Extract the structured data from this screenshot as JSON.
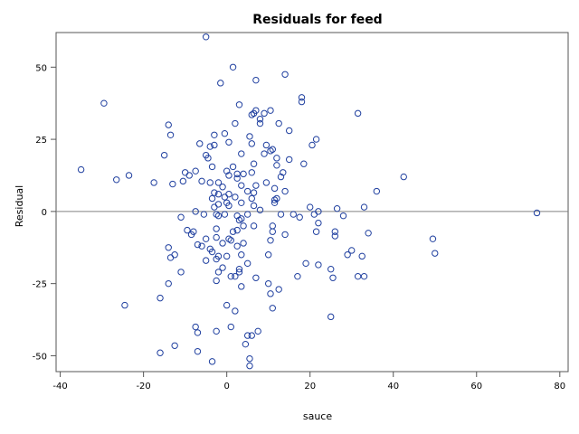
{
  "chart_data": {
    "type": "scatter",
    "title": "Residuals for feed",
    "xlabel": "sauce",
    "ylabel": "Residual",
    "xlim": [
      -41,
      82
    ],
    "ylim": [
      -55.5,
      62
    ],
    "xticks": [
      -40,
      -20,
      0,
      20,
      40,
      60,
      80
    ],
    "yticks": [
      -50,
      -25,
      0,
      25,
      50
    ],
    "reference_line_y": 0,
    "grid": false,
    "marker": "open-circle",
    "marker_color": "#1f3f9f",
    "points": [
      [
        -35,
        14.5
      ],
      [
        -29.5,
        37.5
      ],
      [
        -26.5,
        11
      ],
      [
        -23.5,
        12.5
      ],
      [
        -24.5,
        -32.5
      ],
      [
        -17.5,
        10
      ],
      [
        -16,
        -30
      ],
      [
        -16,
        -49
      ],
      [
        -15,
        19.5
      ],
      [
        -14,
        30
      ],
      [
        -14,
        -25
      ],
      [
        -13.5,
        26.5
      ],
      [
        -13,
        9.5
      ],
      [
        -12.5,
        -15
      ],
      [
        -12.5,
        -46.5
      ],
      [
        -14,
        -12.5
      ],
      [
        -13.5,
        -16
      ],
      [
        -11,
        -2
      ],
      [
        -11,
        -21
      ],
      [
        -10.5,
        10.5
      ],
      [
        -10,
        13.5
      ],
      [
        -9.5,
        -6.5
      ],
      [
        -9,
        12.5
      ],
      [
        -8.5,
        -8
      ],
      [
        -8,
        -7
      ],
      [
        -7.5,
        0
      ],
      [
        -7.5,
        14
      ],
      [
        -7.5,
        -40
      ],
      [
        -7,
        -11.5
      ],
      [
        -7,
        -42
      ],
      [
        -7,
        -48.5
      ],
      [
        -6,
        -12
      ],
      [
        -6.5,
        23.5
      ],
      [
        -6,
        10.5
      ],
      [
        -5.5,
        -1
      ],
      [
        -5,
        -9.5
      ],
      [
        -5,
        -17
      ],
      [
        -5,
        19.5
      ],
      [
        -4.5,
        18.5
      ],
      [
        -4,
        10
      ],
      [
        -4,
        22.5
      ],
      [
        -4,
        -13
      ],
      [
        -3.5,
        15.5
      ],
      [
        -3.5,
        -52
      ],
      [
        -3.5,
        -14
      ],
      [
        -3.5,
        4.5
      ],
      [
        -3,
        1.5
      ],
      [
        -3,
        6.5
      ],
      [
        -3,
        26.5
      ],
      [
        -3,
        23
      ],
      [
        -2.5,
        -1
      ],
      [
        -2.5,
        -6
      ],
      [
        -2.5,
        -9
      ],
      [
        -2.5,
        -16.5
      ],
      [
        -2.5,
        -24
      ],
      [
        -2.5,
        -41.5
      ],
      [
        -2,
        10
      ],
      [
        -2,
        6
      ],
      [
        -2,
        2.5
      ],
      [
        -2,
        -1.5
      ],
      [
        -2,
        -15.5
      ],
      [
        -2,
        -21
      ],
      [
        -1.5,
        44.5
      ],
      [
        -1,
        8.5
      ],
      [
        -1,
        -11
      ],
      [
        -1,
        -19.5
      ],
      [
        -0.5,
        27
      ],
      [
        -0.5,
        5
      ],
      [
        -0.5,
        -1
      ],
      [
        0,
        14
      ],
      [
        0,
        3
      ],
      [
        0,
        -15.5
      ],
      [
        0,
        -32.5
      ],
      [
        0.5,
        24
      ],
      [
        0.5,
        12.5
      ],
      [
        0.5,
        6
      ],
      [
        0.5,
        2
      ],
      [
        0.5,
        -9.5
      ],
      [
        1,
        -10
      ],
      [
        1,
        -22.5
      ],
      [
        1,
        -40
      ],
      [
        1.5,
        15.5
      ],
      [
        1.5,
        -7
      ],
      [
        -5,
        60.5
      ],
      [
        1.5,
        50
      ],
      [
        2,
        30.5
      ],
      [
        2,
        5
      ],
      [
        2,
        -22.5
      ],
      [
        2,
        -34.5
      ],
      [
        2.5,
        13
      ],
      [
        2.5,
        11.5
      ],
      [
        2.5,
        -1.5
      ],
      [
        2.5,
        -6.5
      ],
      [
        2.5,
        -12
      ],
      [
        3,
        37
      ],
      [
        3,
        -3
      ],
      [
        3,
        -20
      ],
      [
        3,
        -21
      ],
      [
        3.5,
        20
      ],
      [
        3.5,
        9
      ],
      [
        3.5,
        3
      ],
      [
        3.5,
        -2.5
      ],
      [
        3.5,
        -15
      ],
      [
        3.5,
        -26
      ],
      [
        4,
        13
      ],
      [
        4,
        -5
      ],
      [
        4,
        -11
      ],
      [
        4.5,
        -46
      ],
      [
        5,
        7
      ],
      [
        5,
        -1
      ],
      [
        5,
        -18
      ],
      [
        5,
        -43
      ],
      [
        5.5,
        26
      ],
      [
        5.5,
        -51
      ],
      [
        5.5,
        -53.5
      ],
      [
        6,
        33.5
      ],
      [
        6,
        23.5
      ],
      [
        6,
        13.5
      ],
      [
        6,
        4.5
      ],
      [
        6,
        -43
      ],
      [
        6.5,
        34
      ],
      [
        6.5,
        16.5
      ],
      [
        6.5,
        6.5
      ],
      [
        6.5,
        2
      ],
      [
        6.5,
        -5
      ],
      [
        7,
        45.5
      ],
      [
        7,
        35
      ],
      [
        7,
        9
      ],
      [
        7,
        -23
      ],
      [
        7.5,
        -41.5
      ],
      [
        8,
        32
      ],
      [
        8,
        30.5
      ],
      [
        8,
        0.5
      ],
      [
        9,
        34
      ],
      [
        9,
        20
      ],
      [
        9.5,
        23
      ],
      [
        9.5,
        10
      ],
      [
        10,
        -15
      ],
      [
        10,
        -25
      ],
      [
        10.5,
        35
      ],
      [
        10.5,
        21
      ],
      [
        10.5,
        -10
      ],
      [
        10.5,
        -28.5
      ],
      [
        11,
        21.5
      ],
      [
        11,
        -5
      ],
      [
        11,
        -7
      ],
      [
        11,
        -33.5
      ],
      [
        11.5,
        4
      ],
      [
        11.5,
        8
      ],
      [
        11.5,
        3
      ],
      [
        12,
        18.5
      ],
      [
        12,
        16
      ],
      [
        12,
        4.5
      ],
      [
        12.5,
        30.5
      ],
      [
        12.5,
        -27
      ],
      [
        13,
        12
      ],
      [
        13,
        -1
      ],
      [
        13.5,
        13.5
      ],
      [
        14,
        47.5
      ],
      [
        14,
        7
      ],
      [
        14,
        -8
      ],
      [
        15,
        28
      ],
      [
        15,
        18
      ],
      [
        16,
        -1
      ],
      [
        17,
        -22.5
      ],
      [
        17.5,
        -2
      ],
      [
        18,
        39.5
      ],
      [
        18,
        38
      ],
      [
        18.5,
        16.5
      ],
      [
        19,
        -18
      ],
      [
        20,
        1.5
      ],
      [
        20.5,
        23
      ],
      [
        21,
        -1
      ],
      [
        21.5,
        25
      ],
      [
        21.5,
        -7
      ],
      [
        22,
        0
      ],
      [
        22,
        -4
      ],
      [
        22,
        -18.5
      ],
      [
        25,
        -36.5
      ],
      [
        25,
        -20
      ],
      [
        25.5,
        -23
      ],
      [
        26,
        -8.5
      ],
      [
        26,
        -7
      ],
      [
        26.5,
        1
      ],
      [
        28,
        -1.5
      ],
      [
        29,
        -15
      ],
      [
        30,
        -13.5
      ],
      [
        31.5,
        34
      ],
      [
        31.5,
        -22.5
      ],
      [
        32.5,
        -15.5
      ],
      [
        33,
        -22.5
      ],
      [
        33,
        1.5
      ],
      [
        34,
        -7.5
      ],
      [
        36,
        7
      ],
      [
        42.5,
        12
      ],
      [
        49.5,
        -9.5
      ],
      [
        50,
        -14.5
      ],
      [
        74.5,
        -0.5
      ]
    ]
  }
}
